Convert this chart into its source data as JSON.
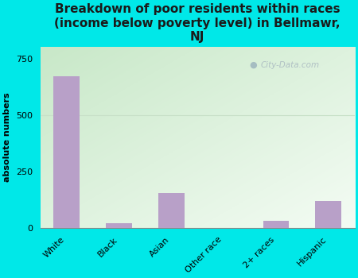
{
  "categories": [
    "White",
    "Black",
    "Asian",
    "Other race",
    "2+ races",
    "Hispanic"
  ],
  "values": [
    670,
    20,
    155,
    0,
    30,
    120
  ],
  "bar_color": "#b8a0c8",
  "title": "Breakdown of poor residents within races\n(income below poverty level) in Bellmawr,\nNJ",
  "ylabel": "absolute numbers",
  "ylim": [
    0,
    800
  ],
  "yticks": [
    0,
    250,
    500,
    750
  ],
  "background_color": "#00e8e8",
  "plot_bg_top_left": "#c8e8c8",
  "plot_bg_bottom_right": "#f0f8f0",
  "grid_color": "#d0e8d0",
  "watermark": "City-Data.com",
  "title_fontsize": 11,
  "axis_fontsize": 8,
  "tick_fontsize": 8,
  "bar_width": 0.5
}
